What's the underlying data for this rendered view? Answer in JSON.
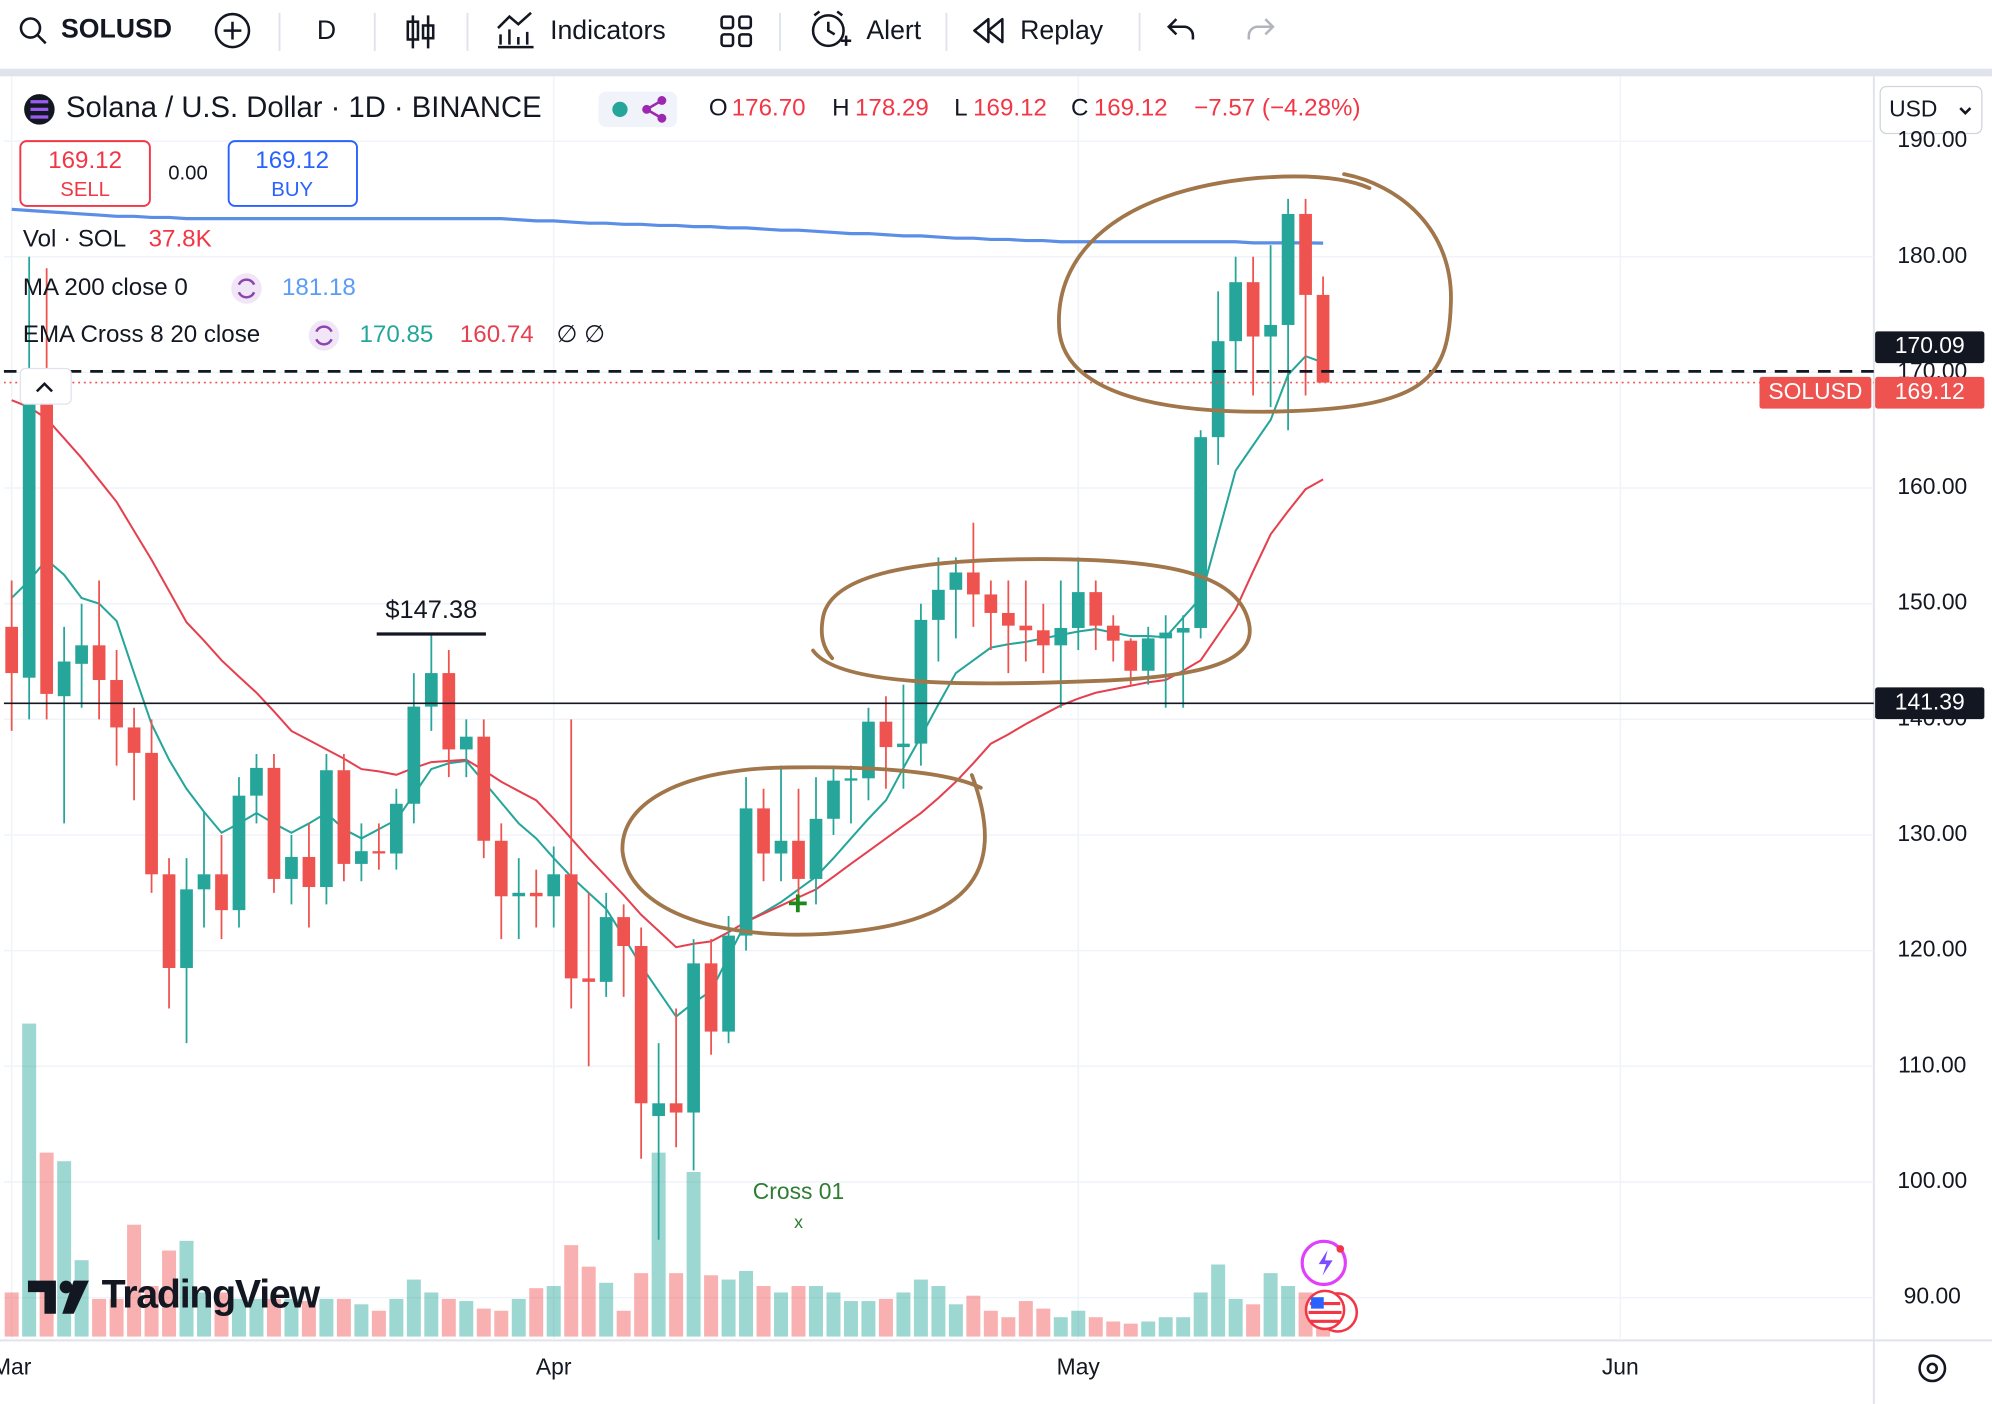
{
  "toolbar": {
    "symbol": "SOLUSD",
    "interval": "D",
    "indicators": "Indicators",
    "alert": "Alert",
    "replay": "Replay"
  },
  "legend": {
    "title": "Solana / U.S. Dollar · 1D · BINANCE",
    "o_label": "O",
    "open": "176.70",
    "h_label": "H",
    "high": "178.29",
    "l_label": "L",
    "low": "169.12",
    "c_label": "C",
    "close": "169.12",
    "change": "−7.57 (−4.28%)"
  },
  "trade": {
    "sell_price": "169.12",
    "sell": "SELL",
    "spread": "0.00",
    "buy_price": "169.12",
    "buy": "BUY"
  },
  "indicators": [
    {
      "label": "Vol · SOL",
      "value": "37.8K"
    },
    {
      "label": "MA 200 close 0",
      "value": "181.18"
    },
    {
      "label": "EMA Cross 8 20 close",
      "values": [
        "170.85",
        "160.74"
      ],
      "extra": "∅ ∅"
    }
  ],
  "currency": "USD",
  "watermark": "TradingView",
  "chart_data": {
    "type": "candlestick",
    "xlim": [
      -0.45,
      106.5
    ],
    "xticks": [
      {
        "value": 0,
        "label": "Mar"
      },
      {
        "value": 31,
        "label": "Apr"
      },
      {
        "value": 61,
        "label": "May"
      },
      {
        "value": 92,
        "label": "Jun"
      }
    ],
    "ylim": [
      86.3,
      195.6
    ],
    "yticks": [
      {
        "value": 90,
        "label": "90.00"
      },
      {
        "value": 100,
        "label": "100.00"
      },
      {
        "value": 110,
        "label": "110.00"
      },
      {
        "value": 120,
        "label": "120.00"
      },
      {
        "value": 130,
        "label": "130.00"
      },
      {
        "value": 140,
        "label": "140.00"
      },
      {
        "value": 150,
        "label": "150.00"
      },
      {
        "value": 160,
        "label": "160.00"
      },
      {
        "value": 170,
        "label": "170.00"
      },
      {
        "value": 180,
        "label": "180.00"
      },
      {
        "value": 190,
        "label": "190.00"
      }
    ],
    "grid": true,
    "up_color": "#26a69a",
    "down_color": "#ef5350",
    "x": [
      0,
      1,
      2,
      3,
      4,
      5,
      6,
      7,
      8,
      9,
      10,
      11,
      12,
      13,
      14,
      15,
      16,
      17,
      18,
      19,
      20,
      21,
      22,
      23,
      24,
      25,
      26,
      27,
      28,
      29,
      30,
      31,
      32,
      33,
      34,
      35,
      36,
      37,
      38,
      39,
      40,
      41,
      42,
      43,
      44,
      45,
      46,
      47,
      48,
      49,
      50,
      51,
      52,
      53,
      54,
      55,
      56,
      57,
      58,
      59,
      60,
      61,
      62,
      63,
      64,
      65,
      66,
      67,
      68,
      69,
      70,
      71,
      72,
      73,
      74,
      75
    ],
    "open": [
      148,
      143.6,
      170,
      142,
      144.8,
      146.4,
      143.4,
      139.3,
      137.1,
      126.6,
      118.5,
      125.3,
      126.6,
      123.5,
      133.4,
      135.8,
      126.2,
      128.1,
      125.5,
      135.6,
      127.5,
      128.6,
      128.4,
      132.7,
      141.1,
      144,
      137.4,
      138.5,
      129.5,
      124.7,
      125,
      124.7,
      126.6,
      117.6,
      117.3,
      122.9,
      120.4,
      105.7,
      106.8,
      106,
      118.9,
      113,
      121.3,
      132.3,
      128.4,
      129.5,
      126.2,
      131.4,
      134.7,
      134.9,
      139.8,
      137.6,
      137.9,
      148.6,
      151.2,
      152.7,
      150.8,
      149.2,
      148.1,
      147.7,
      146.4,
      147.9,
      151,
      148.1,
      146.8,
      144.2,
      147,
      147.5,
      147.9,
      164.4,
      172.7,
      177.8,
      173.1,
      174.1,
      183.7,
      176.7
    ],
    "high": [
      152,
      180,
      179,
      148,
      150,
      152,
      146,
      141,
      140,
      128,
      128,
      132,
      130,
      135,
      137,
      137,
      130,
      131,
      137,
      137,
      131,
      131,
      134,
      144,
      147.38,
      146,
      140,
      140,
      131,
      128,
      127,
      129,
      140,
      125,
      125,
      124,
      122,
      112,
      115,
      121,
      121,
      123,
      135,
      134,
      136,
      134,
      135,
      136,
      136,
      141,
      142,
      143,
      150,
      154,
      154,
      157,
      152,
      152,
      152,
      150,
      152,
      154,
      152,
      149,
      147,
      148,
      149,
      149,
      165,
      177,
      180,
      180,
      181,
      185,
      185,
      178.29
    ],
    "low": [
      139,
      140,
      140,
      131,
      141,
      140,
      136,
      133,
      125,
      115,
      112,
      122,
      121,
      122,
      131,
      125,
      124,
      122,
      124,
      126,
      126,
      127,
      127,
      131,
      139,
      135,
      135,
      128,
      121,
      121,
      122,
      122,
      115,
      110,
      116,
      116,
      102,
      95,
      103,
      101,
      111,
      112,
      120,
      126,
      126,
      124,
      124,
      130,
      131,
      133,
      134,
      134,
      136,
      145,
      147,
      148,
      146,
      144,
      145,
      144,
      141,
      146,
      146,
      145,
      143,
      143,
      141,
      141,
      147,
      162,
      170,
      168,
      167,
      165,
      168,
      169.12
    ],
    "close": [
      144,
      170,
      142.2,
      145,
      146.4,
      143.4,
      139.3,
      137.1,
      126.6,
      118.5,
      125.3,
      126.6,
      123.5,
      133.4,
      135.8,
      126.2,
      128.1,
      125.5,
      135.6,
      127.5,
      128.6,
      128.4,
      132.7,
      141.1,
      144,
      137.4,
      138.5,
      129.5,
      124.7,
      125,
      124.7,
      126.6,
      117.6,
      117.3,
      122.9,
      120.4,
      106.8,
      106.8,
      106,
      118.9,
      113,
      121.3,
      132.3,
      128.4,
      129.5,
      126.2,
      131.4,
      134.7,
      134.9,
      139.8,
      137.6,
      137.9,
      148.6,
      151.2,
      152.7,
      150.8,
      149.2,
      148.1,
      147.7,
      146.4,
      147.9,
      151,
      148.1,
      146.8,
      144.2,
      147,
      147.5,
      147.9,
      164.4,
      172.7,
      177.8,
      173.1,
      174.1,
      183.7,
      176.7,
      169.12
    ],
    "volume": [
      41,
      291,
      171,
      163,
      71,
      35,
      35,
      104,
      47,
      80,
      89,
      41,
      41,
      35,
      35,
      35,
      35,
      33,
      35,
      35,
      30,
      24,
      35,
      53,
      41,
      35,
      33,
      26,
      24,
      35,
      45,
      47,
      85,
      65,
      50,
      24,
      59,
      171,
      59,
      153,
      57,
      53,
      61,
      47,
      41,
      47,
      47,
      41,
      33,
      33,
      35,
      41,
      53,
      47,
      30,
      38,
      24,
      18,
      33,
      26,
      18,
      24,
      18,
      14,
      12,
      14,
      18,
      18,
      41,
      67,
      35,
      30,
      59,
      47,
      41,
      37.8
    ],
    "vlim": [
      0,
      300
    ],
    "lines": [
      {
        "color": "#5b8ee6",
        "values": [
          184.1,
          184.0,
          183.9,
          183.8,
          183.7,
          183.6,
          183.5,
          183.5,
          183.4,
          183.4,
          183.3,
          183.3,
          183.3,
          183.3,
          183.3,
          183.3,
          183.3,
          183.3,
          183.3,
          183.3,
          183.3,
          183.3,
          183.3,
          183.3,
          183.3,
          183.3,
          183.3,
          183.3,
          183.3,
          183.2,
          183.1,
          183.1,
          183.0,
          182.9,
          182.9,
          182.8,
          182.8,
          182.7,
          182.7,
          182.6,
          182.6,
          182.5,
          182.5,
          182.4,
          182.3,
          182.3,
          182.2,
          182.1,
          182.0,
          182.0,
          181.9,
          181.8,
          181.8,
          181.7,
          181.6,
          181.6,
          181.5,
          181.5,
          181.4,
          181.4,
          181.3,
          181.3,
          181.3,
          181.3,
          181.3,
          181.3,
          181.3,
          181.3,
          181.3,
          181.3,
          181.3,
          181.2,
          181.2,
          181.2,
          181.2,
          181.18
        ]
      },
      {
        "color": "#26a69a",
        "values": [
          150.5,
          152,
          153.8,
          152.5,
          150.5,
          150,
          148.5,
          144,
          139.6,
          136.5,
          134,
          132,
          130.2,
          131,
          131.9,
          131,
          130.2,
          131,
          131.9,
          130.5,
          129.7,
          130.5,
          131.3,
          133.5,
          135.7,
          136.2,
          136.4,
          134.6,
          132.8,
          131,
          129.7,
          128,
          126.4,
          125,
          123.6,
          121.2,
          118.7,
          116.5,
          114.3,
          115.5,
          116.5,
          119.5,
          122.5,
          123.3,
          124.2,
          125.3,
          126.4,
          128,
          129.7,
          131.4,
          133,
          135.8,
          138.5,
          141.3,
          144,
          145.1,
          146.2,
          146.5,
          146.7,
          147,
          147.3,
          147.6,
          147.8,
          147.5,
          147.2,
          147.2,
          147.1,
          148.8,
          150.5,
          156,
          161.5,
          163.7,
          165.9,
          169.8,
          171.4,
          170.85
        ]
      },
      {
        "color": "#e5404f",
        "values": [
          167.6,
          167,
          166,
          164.3,
          162.6,
          160.7,
          158.8,
          156.3,
          153.8,
          151.1,
          148.4,
          146.8,
          145.1,
          143.7,
          142.3,
          140.7,
          139,
          138.2,
          137.4,
          136.6,
          135.7,
          135.5,
          135.2,
          135.8,
          136.3,
          136.4,
          136.5,
          135.6,
          134.6,
          133.8,
          133,
          131.4,
          129.7,
          128,
          126.4,
          124.8,
          123.1,
          121.7,
          120.3,
          120.6,
          120.8,
          121.6,
          122.5,
          123.2,
          123.9,
          124.6,
          125.3,
          126.4,
          127.5,
          128.6,
          129.7,
          130.8,
          131.9,
          133.2,
          134.6,
          136.2,
          137.9,
          138.7,
          139.6,
          140.4,
          141.2,
          141.8,
          142.3,
          142.6,
          142.9,
          143.2,
          143.4,
          144.2,
          145.1,
          147.3,
          149.5,
          152.8,
          156,
          158,
          159.9,
          160.74
        ]
      }
    ],
    "price_lines": [
      {
        "value": 170.09,
        "style": "dashed",
        "color": "#131722"
      },
      {
        "value": 169.12,
        "name": "SOLUSD",
        "style": "dotted",
        "color": "#ef5350"
      },
      {
        "value": 141.39,
        "style": "solid",
        "color": "#131722"
      }
    ],
    "annotations": [
      {
        "text": "$147.38",
        "x": 24,
        "value": 147.38
      },
      {
        "text": "Cross 01",
        "marker": "x",
        "x": 45
      }
    ]
  }
}
